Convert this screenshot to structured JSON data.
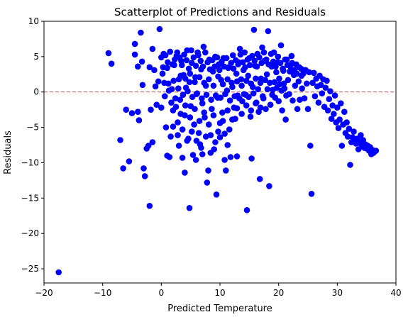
{
  "chart_data": {
    "type": "scatter",
    "title": "Scatterplot of Predictions and Residuals",
    "xlabel": "Predicted Temperature",
    "ylabel": "Residuals",
    "xlim": [
      -20,
      40
    ],
    "ylim": [
      -27,
      10
    ],
    "xticks": [
      -20,
      -10,
      0,
      10,
      20,
      30,
      40
    ],
    "yticks": [
      -25,
      -20,
      -15,
      -10,
      -5,
      0,
      5,
      10
    ],
    "grid": false,
    "marker_color": "#0000ff",
    "reference_line": {
      "y": 0,
      "color": "#b5484e",
      "style": "dashed"
    },
    "points": [
      [
        -17.5,
        -25.5
      ],
      [
        -9,
        5.5
      ],
      [
        -8.5,
        4
      ],
      [
        -7,
        -6.8
      ],
      [
        -6.5,
        -10.8
      ],
      [
        -6,
        -2.5
      ],
      [
        -5.5,
        -9.8
      ],
      [
        -5,
        -3
      ],
      [
        -4.5,
        6.8
      ],
      [
        -4.5,
        5.3
      ],
      [
        -4,
        3.6
      ],
      [
        -4,
        -2.8
      ],
      [
        -3.8,
        -4
      ],
      [
        -3.5,
        8.4
      ],
      [
        -3.3,
        4.3
      ],
      [
        -3.2,
        1
      ],
      [
        -3,
        -10.8
      ],
      [
        -2.8,
        -11.9
      ],
      [
        -2.5,
        -8
      ],
      [
        -2.2,
        -7.6
      ],
      [
        -2,
        -16.1
      ],
      [
        -2,
        3.5
      ],
      [
        -1.8,
        -2.5
      ],
      [
        -1.5,
        -7.1
      ],
      [
        -1.5,
        6.1
      ],
      [
        -1.2,
        3.1
      ],
      [
        -1,
        0.8
      ],
      [
        -0.8,
        -1.8
      ],
      [
        -0.5,
        1.5
      ],
      [
        -0.3,
        8.9
      ],
      [
        0,
        4.9
      ],
      [
        0,
        -2.2
      ],
      [
        0.2,
        2.6
      ],
      [
        0.4,
        5.4
      ],
      [
        0.6,
        -0.6
      ],
      [
        0.8,
        -5
      ],
      [
        1,
        -9
      ],
      [
        1,
        3.4
      ],
      [
        1.2,
        1.2
      ],
      [
        1.4,
        -9.2
      ],
      [
        1.5,
        5.7
      ],
      [
        1.6,
        -6.3
      ],
      [
        1.8,
        0.4
      ],
      [
        2,
        -2.6
      ],
      [
        2.2,
        3.8
      ],
      [
        2.4,
        -0.9
      ],
      [
        2.6,
        5.1
      ],
      [
        2.8,
        -4.3
      ],
      [
        3,
        -7.6
      ],
      [
        3,
        1.8
      ],
      [
        3.2,
        -1.1
      ],
      [
        3.4,
        4.4
      ],
      [
        3.6,
        -9.3
      ],
      [
        3.8,
        2.4
      ],
      [
        4,
        -11.4
      ],
      [
        4,
        -3.3
      ],
      [
        4.2,
        0.6
      ],
      [
        4.4,
        5.9
      ],
      [
        4.6,
        -6.6
      ],
      [
        4.8,
        -16.4
      ],
      [
        4.8,
        1.4
      ],
      [
        5,
        -2
      ],
      [
        5.2,
        4.1
      ],
      [
        5.4,
        -8.9
      ],
      [
        5.6,
        -4.6
      ],
      [
        5.8,
        2.1
      ],
      [
        6,
        -0.3
      ],
      [
        6.2,
        5.6
      ],
      [
        6.4,
        -5.8
      ],
      [
        6.6,
        -7.4
      ],
      [
        6.8,
        3.2
      ],
      [
        7,
        -1.6
      ],
      [
        7.2,
        6.4
      ],
      [
        7.4,
        -3.6
      ],
      [
        7.6,
        0.9
      ],
      [
        7.8,
        -12.8
      ],
      [
        8,
        -11.1
      ],
      [
        8.2,
        4.6
      ],
      [
        8.4,
        -6.1
      ],
      [
        8.6,
        -2.4
      ],
      [
        8.8,
        2.9
      ],
      [
        9,
        -8.1
      ],
      [
        9.2,
        5
      ],
      [
        9.4,
        -14.5
      ],
      [
        9.6,
        -0.8
      ],
      [
        9.8,
        3.9
      ],
      [
        10,
        -4.4
      ],
      [
        10.2,
        1.7
      ],
      [
        10.4,
        -2.9
      ],
      [
        10.6,
        4.8
      ],
      [
        10.8,
        -9.6
      ],
      [
        11,
        -11.1
      ],
      [
        11.2,
        0.2
      ],
      [
        11.4,
        3.4
      ],
      [
        11.6,
        -5.3
      ],
      [
        11.8,
        -9.2
      ],
      [
        12,
        1.3
      ],
      [
        12.2,
        5.2
      ],
      [
        12.4,
        -2.2
      ],
      [
        12.6,
        -3.8
      ],
      [
        12.8,
        2.6
      ],
      [
        13,
        -0.5
      ],
      [
        13.2,
        4.2
      ],
      [
        13.4,
        6.1
      ],
      [
        13.6,
        1.8
      ],
      [
        13.8,
        -1.3
      ],
      [
        14,
        3.1
      ],
      [
        14.2,
        5.6
      ],
      [
        14.4,
        -0.4
      ],
      [
        14.6,
        -16.7
      ],
      [
        14.8,
        2.3
      ],
      [
        15,
        4.8
      ],
      [
        15.2,
        -3.5
      ],
      [
        15.4,
        -9.4
      ],
      [
        15.6,
        0.7
      ],
      [
        15.8,
        8.8
      ],
      [
        16,
        3.7
      ],
      [
        16.2,
        -1.5
      ],
      [
        16.4,
        5.4
      ],
      [
        16.6,
        -2.8
      ],
      [
        16.8,
        -12.3
      ],
      [
        17,
        1.9
      ],
      [
        17.2,
        6.3
      ],
      [
        17.4,
        -0.9
      ],
      [
        17.6,
        4.4
      ],
      [
        17.8,
        -2.4
      ],
      [
        18,
        2.5
      ],
      [
        18.2,
        8.6
      ],
      [
        18.4,
        -13.3
      ],
      [
        18.6,
        -1.8
      ],
      [
        18.8,
        3.6
      ],
      [
        19,
        0.3
      ],
      [
        19.2,
        5.6
      ],
      [
        19.4,
        -0.8
      ],
      [
        19.6,
        2.8
      ],
      [
        19.8,
        4.2
      ],
      [
        20,
        -1.3
      ],
      [
        20.2,
        1.1
      ],
      [
        20.4,
        6.6
      ],
      [
        20.6,
        -2.6
      ],
      [
        20.8,
        3
      ],
      [
        21,
        0.5
      ],
      [
        21.2,
        -3.9
      ],
      [
        21.4,
        4.6
      ],
      [
        21.6,
        1.7
      ],
      [
        21.8,
        -0.3
      ],
      [
        22,
        3.6
      ],
      [
        22.2,
        5.1
      ],
      [
        22.4,
        -1.2
      ],
      [
        22.6,
        2.4
      ],
      [
        22.8,
        0.9
      ],
      [
        23,
        3.9
      ],
      [
        23.2,
        -2.4
      ],
      [
        23.4,
        1.5
      ],
      [
        23.6,
        -1.1
      ],
      [
        23.8,
        3.3
      ],
      [
        24,
        0.5
      ],
      [
        24.2,
        2.6
      ],
      [
        24.4,
        -0.9
      ],
      [
        24.6,
        3.1
      ],
      [
        24.8,
        1.2
      ],
      [
        25,
        -2.4
      ],
      [
        25.2,
        2.8
      ],
      [
        25.4,
        -7.6
      ],
      [
        25.6,
        -14.4
      ],
      [
        25.8,
        1.3
      ],
      [
        26,
        2.7
      ],
      [
        26.2,
        -0.6
      ],
      [
        26.4,
        1.9
      ],
      [
        26.6,
        0.8
      ],
      [
        26.8,
        -1.5
      ],
      [
        27,
        2.3
      ],
      [
        27.2,
        1
      ],
      [
        27.4,
        -0.2
      ],
      [
        27.6,
        1.8
      ],
      [
        27.8,
        -2.1
      ],
      [
        28,
        0.6
      ],
      [
        28.2,
        1.6
      ],
      [
        28.4,
        -2.6
      ],
      [
        28.6,
        -1
      ],
      [
        28.8,
        0.1
      ],
      [
        29,
        -3.8
      ],
      [
        29.2,
        -1.9
      ],
      [
        29.4,
        -3.1
      ],
      [
        29.6,
        -0.5
      ],
      [
        29.8,
        -4.3
      ],
      [
        30,
        -2.2
      ],
      [
        30.2,
        -5.1
      ],
      [
        30.4,
        -3.9
      ],
      [
        30.6,
        -1.6
      ],
      [
        30.8,
        -7.6
      ],
      [
        31,
        -4.6
      ],
      [
        31.2,
        -2.8
      ],
      [
        31.4,
        -5.8
      ],
      [
        31.6,
        -4.3
      ],
      [
        31.8,
        -6.3
      ],
      [
        32,
        -5.2
      ],
      [
        32.2,
        -10.3
      ],
      [
        32.4,
        -7.1
      ],
      [
        32.6,
        -6.4
      ],
      [
        32.8,
        -5.6
      ],
      [
        33,
        -6.9
      ],
      [
        33.2,
        -7.3
      ],
      [
        33.4,
        -6.6
      ],
      [
        33.6,
        -8.1
      ],
      [
        33.8,
        -7.2
      ],
      [
        34,
        -6.1
      ],
      [
        34.2,
        -7.7
      ],
      [
        34.4,
        -6.8
      ],
      [
        34.6,
        -7.9
      ],
      [
        34.8,
        -7.4
      ],
      [
        35,
        -8
      ],
      [
        35.2,
        -7.6
      ],
      [
        35.4,
        -8.3
      ],
      [
        35.6,
        -7.8
      ],
      [
        35.8,
        -8.8
      ],
      [
        36,
        -8.2
      ],
      [
        36.2,
        -8.6
      ],
      [
        36.4,
        -8.4
      ],
      [
        36.6,
        -8.3
      ],
      [
        0.3,
        3.5
      ],
      [
        0.7,
        5.2
      ],
      [
        1.1,
        4.2
      ],
      [
        1.9,
        3.9
      ],
      [
        2.3,
        4.6
      ],
      [
        2.7,
        5.6
      ],
      [
        3.1,
        4.9
      ],
      [
        3.5,
        3.8
      ],
      [
        3.9,
        5.3
      ],
      [
        4.3,
        4.5
      ],
      [
        4.7,
        3.3
      ],
      [
        5.1,
        5.9
      ],
      [
        5.5,
        4.9
      ],
      [
        5.9,
        3.7
      ],
      [
        6.3,
        5.2
      ],
      [
        6.7,
        4.4
      ],
      [
        7.1,
        3.6
      ],
      [
        7.5,
        5.6
      ],
      [
        7.9,
        4.2
      ],
      [
        8.3,
        3.2
      ],
      [
        8.7,
        4.5
      ],
      [
        9.1,
        3.6
      ],
      [
        9.5,
        4.9
      ],
      [
        9.9,
        3.1
      ],
      [
        10.3,
        4.3
      ],
      [
        10.7,
        3.6
      ],
      [
        11.1,
        4.8
      ],
      [
        11.5,
        3.5
      ],
      [
        11.9,
        4.1
      ],
      [
        12.3,
        3.3
      ],
      [
        12.7,
        4.5
      ],
      [
        13.1,
        3.9
      ],
      [
        13.5,
        5.3
      ],
      [
        13.9,
        4.2
      ],
      [
        14.3,
        3.5
      ],
      [
        14.7,
        4.6
      ],
      [
        15.1,
        3.8
      ],
      [
        15.5,
        5.1
      ],
      [
        15.9,
        4.4
      ],
      [
        16.3,
        3.6
      ],
      [
        16.7,
        4.9
      ],
      [
        17.1,
        4.1
      ],
      [
        17.5,
        5.6
      ],
      [
        17.9,
        4.6
      ],
      [
        18.3,
        3.9
      ],
      [
        18.7,
        5.4
      ],
      [
        19.1,
        4.3
      ],
      [
        19.5,
        3.6
      ],
      [
        19.9,
        5
      ],
      [
        20.3,
        4.1
      ],
      [
        20.7,
        3.3
      ],
      [
        21.1,
        4.6
      ],
      [
        21.5,
        3.8
      ],
      [
        21.9,
        2.9
      ],
      [
        22.3,
        4.1
      ],
      [
        22.7,
        3.1
      ],
      [
        23.1,
        2.6
      ],
      [
        23.5,
        3.5
      ],
      [
        23.9,
        2.3
      ],
      [
        24.3,
        3.1
      ],
      [
        0.5,
        1.3
      ],
      [
        1.3,
        0.2
      ],
      [
        2.1,
        1.6
      ],
      [
        2.9,
        0.5
      ],
      [
        3.3,
        2.3
      ],
      [
        3.7,
        -0.4
      ],
      [
        4.1,
        1.9
      ],
      [
        4.5,
        0.1
      ],
      [
        4.9,
        2.6
      ],
      [
        5.3,
        -0.7
      ],
      [
        5.7,
        1.4
      ],
      [
        6.1,
        -0.2
      ],
      [
        6.5,
        2.1
      ],
      [
        6.9,
        -0.9
      ],
      [
        7.3,
        1.3
      ],
      [
        7.7,
        -0.4
      ],
      [
        8.1,
        1.8
      ],
      [
        8.5,
        -1.1
      ],
      [
        8.9,
        0.9
      ],
      [
        9.3,
        -0.5
      ],
      [
        9.7,
        2.2
      ],
      [
        10.1,
        -0.8
      ],
      [
        10.5,
        1.1
      ],
      [
        10.9,
        -0.3
      ],
      [
        11.3,
        1.8
      ],
      [
        11.7,
        -1.2
      ],
      [
        12.1,
        0.7
      ],
      [
        12.5,
        -0.6
      ],
      [
        12.9,
        1.5
      ],
      [
        13.3,
        -0.9
      ],
      [
        13.7,
        0.9
      ],
      [
        14.1,
        -0.3
      ],
      [
        14.5,
        1.6
      ],
      [
        14.9,
        -0.7
      ],
      [
        15.3,
        1.2
      ],
      [
        15.7,
        -0.2
      ],
      [
        16.1,
        1.9
      ],
      [
        16.5,
        0.4
      ],
      [
        16.9,
        1.3
      ],
      [
        17.3,
        -0.6
      ],
      [
        17.7,
        1.7
      ],
      [
        18.1,
        0.4
      ],
      [
        18.5,
        1.3
      ],
      [
        18.9,
        -0.4
      ],
      [
        19.3,
        1.4
      ],
      [
        19.7,
        0.6
      ],
      [
        20.1,
        1.9
      ],
      [
        20.5,
        0.2
      ],
      [
        20.9,
        1.2
      ],
      [
        21.3,
        -0.5
      ],
      [
        1.7,
        -1.5
      ],
      [
        2.5,
        -2.1
      ],
      [
        3.3,
        -3.1
      ],
      [
        4.1,
        -1.9
      ],
      [
        4.9,
        -3.6
      ],
      [
        5.7,
        -2.4
      ],
      [
        6.5,
        -4.1
      ],
      [
        7.3,
        -2.9
      ],
      [
        8.1,
        -4.6
      ],
      [
        8.9,
        -3.3
      ],
      [
        9.7,
        -5.6
      ],
      [
        10.5,
        -4.1
      ],
      [
        11.3,
        -2.6
      ],
      [
        12.1,
        -3.9
      ],
      [
        12.9,
        -2.3
      ],
      [
        13.7,
        -3.1
      ],
      [
        14.5,
        -1.9
      ],
      [
        15.3,
        -2.6
      ],
      [
        16.1,
        -1.6
      ],
      [
        16.9,
        -2.2
      ],
      [
        5.2,
        -5.6
      ],
      [
        6,
        -6.9
      ],
      [
        6.8,
        -7.9
      ],
      [
        7.6,
        -6.3
      ],
      [
        8.4,
        -8.6
      ],
      [
        9.2,
        -7.1
      ],
      [
        10,
        -6.4
      ],
      [
        10.8,
        -5.9
      ],
      [
        4.4,
        -6.9
      ],
      [
        3.6,
        -5.3
      ],
      [
        2.8,
        -6.1
      ],
      [
        2,
        -4.9
      ],
      [
        5.9,
        -9.6
      ],
      [
        7,
        -8.8
      ],
      [
        12.9,
        -9.1
      ],
      [
        11.3,
        -7.5
      ]
    ]
  }
}
